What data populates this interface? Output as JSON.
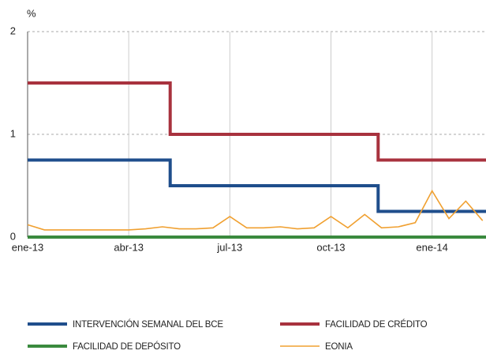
{
  "chart_data": {
    "type": "line",
    "y_label": "%",
    "xlim": [
      0,
      13.6
    ],
    "xticks": [
      {
        "value": 0,
        "label": "ene-13"
      },
      {
        "value": 3,
        "label": "abr-13"
      },
      {
        "value": 6,
        "label": "jul-13"
      },
      {
        "value": 9,
        "label": "oct-13"
      },
      {
        "value": 12,
        "label": "ene-14"
      }
    ],
    "ylim": [
      0,
      2
    ],
    "yticks": [
      0,
      1,
      2
    ],
    "grid": true,
    "series": [
      {
        "name": "INTERVENCIÓN SEMANAL DEL BCE",
        "color": "#1f4e8c",
        "width": 4,
        "x": [
          0,
          4.23,
          4.23,
          10.4,
          10.4,
          13.6
        ],
        "values": [
          0.75,
          0.75,
          0.5,
          0.5,
          0.25,
          0.25
        ]
      },
      {
        "name": "FACILIDAD DE CRÉDITO",
        "color": "#a8323e",
        "width": 4,
        "x": [
          0,
          4.23,
          4.23,
          10.4,
          10.4,
          13.6
        ],
        "values": [
          1.5,
          1.5,
          1.0,
          1.0,
          0.75,
          0.75
        ]
      },
      {
        "name": "FACILIDAD DE DEPÓSITO",
        "color": "#3a8a3e",
        "width": 4,
        "x": [
          0,
          13.6
        ],
        "values": [
          0,
          0
        ]
      },
      {
        "name": "EONIA",
        "color": "#f0a030",
        "width": 1.6,
        "x": [
          0,
          0.5,
          1,
          1.5,
          2,
          2.5,
          3,
          3.5,
          4,
          4.5,
          5,
          5.5,
          6,
          6.5,
          7,
          7.5,
          8,
          8.5,
          9,
          9.5,
          10,
          10.5,
          11,
          11.5,
          12,
          12.5,
          13,
          13.5
        ],
        "values": [
          0.12,
          0.07,
          0.07,
          0.07,
          0.07,
          0.07,
          0.07,
          0.08,
          0.1,
          0.08,
          0.08,
          0.09,
          0.2,
          0.09,
          0.09,
          0.1,
          0.08,
          0.09,
          0.2,
          0.09,
          0.22,
          0.09,
          0.1,
          0.14,
          0.45,
          0.18,
          0.35,
          0.16
        ]
      }
    ]
  }
}
